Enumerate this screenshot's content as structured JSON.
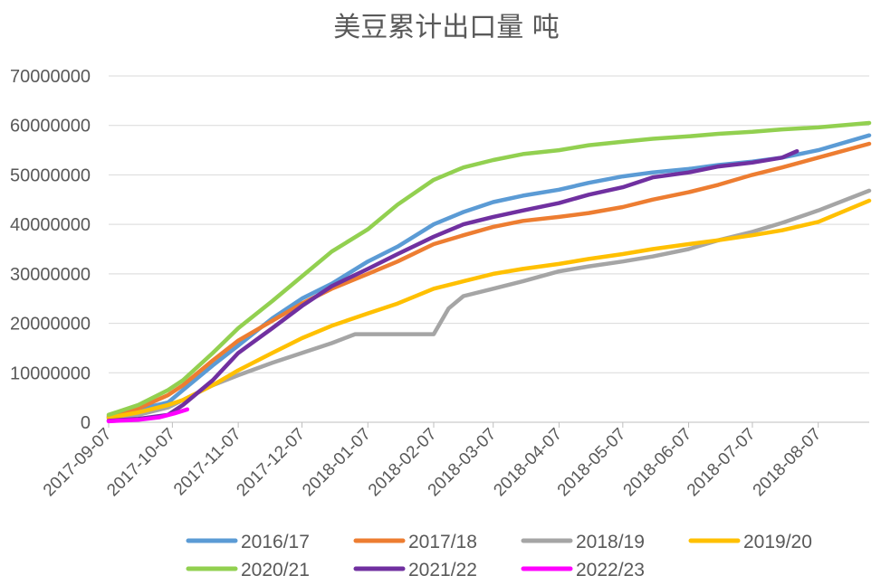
{
  "chart_data": {
    "type": "line",
    "title": "美豆累计出口量 吨",
    "ylim": [
      0,
      70000000
    ],
    "yticks": [
      "0",
      "10000000",
      "20000000",
      "30000000",
      "40000000",
      "50000000",
      "60000000",
      "70000000"
    ],
    "x_domain": [
      "2017-09-07",
      "2018-08-31"
    ],
    "x_tick_labels": [
      "2017-09-07",
      "2017-10-07",
      "2017-11-07",
      "2017-12-07",
      "2018-01-07",
      "2018-02-07",
      "2018-03-07",
      "2018-04-07",
      "2018-05-07",
      "2018-06-07",
      "2018-07-07",
      "2018-08-07"
    ],
    "grid": "horizontal",
    "legend_position": "bottom",
    "series": [
      {
        "name": "2016/17",
        "color": "#5B9BD5",
        "points": [
          [
            "2017-09-07",
            1000000
          ],
          [
            "2017-09-21",
            2600000
          ],
          [
            "2017-10-05",
            4000000
          ],
          [
            "2017-10-12",
            6500000
          ],
          [
            "2017-10-26",
            11500000
          ],
          [
            "2017-11-07",
            15500000
          ],
          [
            "2017-11-23",
            21000000
          ],
          [
            "2017-12-07",
            25000000
          ],
          [
            "2017-12-21",
            28000000
          ],
          [
            "2018-01-07",
            32500000
          ],
          [
            "2018-01-21",
            35500000
          ],
          [
            "2018-02-07",
            40000000
          ],
          [
            "2018-02-21",
            42500000
          ],
          [
            "2018-03-07",
            44500000
          ],
          [
            "2018-03-21",
            45800000
          ],
          [
            "2018-04-07",
            47000000
          ],
          [
            "2018-04-21",
            48400000
          ],
          [
            "2018-05-07",
            49700000
          ],
          [
            "2018-05-21",
            50500000
          ],
          [
            "2018-06-07",
            51200000
          ],
          [
            "2018-06-21",
            52000000
          ],
          [
            "2018-07-07",
            52700000
          ],
          [
            "2018-07-21",
            53500000
          ],
          [
            "2018-08-07",
            55000000
          ],
          [
            "2018-08-31",
            58000000
          ]
        ]
      },
      {
        "name": "2017/18",
        "color": "#ED7D31",
        "points": [
          [
            "2017-09-07",
            1200000
          ],
          [
            "2017-09-21",
            2800000
          ],
          [
            "2017-10-05",
            5500000
          ],
          [
            "2017-10-12",
            7500000
          ],
          [
            "2017-10-26",
            12500000
          ],
          [
            "2017-11-07",
            16500000
          ],
          [
            "2017-11-23",
            20500000
          ],
          [
            "2017-12-07",
            24000000
          ],
          [
            "2017-12-21",
            27000000
          ],
          [
            "2018-01-07",
            30000000
          ],
          [
            "2018-01-21",
            32500000
          ],
          [
            "2018-02-07",
            36000000
          ],
          [
            "2018-02-21",
            37800000
          ],
          [
            "2018-03-07",
            39500000
          ],
          [
            "2018-03-21",
            40700000
          ],
          [
            "2018-04-07",
            41500000
          ],
          [
            "2018-04-21",
            42300000
          ],
          [
            "2018-05-07",
            43500000
          ],
          [
            "2018-05-21",
            45000000
          ],
          [
            "2018-06-07",
            46500000
          ],
          [
            "2018-06-21",
            48000000
          ],
          [
            "2018-07-07",
            50000000
          ],
          [
            "2018-07-21",
            51500000
          ],
          [
            "2018-08-07",
            53500000
          ],
          [
            "2018-08-31",
            56300000
          ]
        ]
      },
      {
        "name": "2018/19",
        "color": "#A5A5A5",
        "points": [
          [
            "2017-09-07",
            800000
          ],
          [
            "2017-09-21",
            1500000
          ],
          [
            "2017-10-05",
            3000000
          ],
          [
            "2017-10-12",
            4500000
          ],
          [
            "2017-10-26",
            7500000
          ],
          [
            "2017-11-07",
            9500000
          ],
          [
            "2017-11-23",
            12000000
          ],
          [
            "2017-12-07",
            14000000
          ],
          [
            "2017-12-21",
            16000000
          ],
          [
            "2018-01-01",
            17800000
          ],
          [
            "2018-01-15",
            17800000
          ],
          [
            "2018-02-07",
            17800000
          ],
          [
            "2018-02-14",
            23000000
          ],
          [
            "2018-02-21",
            25500000
          ],
          [
            "2018-03-07",
            27000000
          ],
          [
            "2018-03-21",
            28500000
          ],
          [
            "2018-04-07",
            30500000
          ],
          [
            "2018-04-21",
            31500000
          ],
          [
            "2018-05-07",
            32500000
          ],
          [
            "2018-05-21",
            33500000
          ],
          [
            "2018-06-07",
            35000000
          ],
          [
            "2018-06-21",
            36800000
          ],
          [
            "2018-07-07",
            38500000
          ],
          [
            "2018-07-21",
            40300000
          ],
          [
            "2018-08-07",
            42800000
          ],
          [
            "2018-08-31",
            46800000
          ]
        ]
      },
      {
        "name": "2019/20",
        "color": "#FFC000",
        "points": [
          [
            "2017-09-07",
            900000
          ],
          [
            "2017-09-21",
            2000000
          ],
          [
            "2017-10-05",
            3500000
          ],
          [
            "2017-10-12",
            4500000
          ],
          [
            "2017-10-26",
            7500000
          ],
          [
            "2017-11-07",
            10500000
          ],
          [
            "2017-11-23",
            14000000
          ],
          [
            "2017-12-07",
            17000000
          ],
          [
            "2017-12-21",
            19500000
          ],
          [
            "2018-01-07",
            22000000
          ],
          [
            "2018-01-21",
            24000000
          ],
          [
            "2018-02-07",
            27000000
          ],
          [
            "2018-02-21",
            28500000
          ],
          [
            "2018-03-07",
            30000000
          ],
          [
            "2018-03-21",
            31000000
          ],
          [
            "2018-04-07",
            32000000
          ],
          [
            "2018-04-21",
            33000000
          ],
          [
            "2018-05-07",
            34000000
          ],
          [
            "2018-05-21",
            35000000
          ],
          [
            "2018-06-07",
            36000000
          ],
          [
            "2018-06-21",
            36800000
          ],
          [
            "2018-07-07",
            37800000
          ],
          [
            "2018-07-21",
            38800000
          ],
          [
            "2018-08-07",
            40500000
          ],
          [
            "2018-08-31",
            44800000
          ]
        ]
      },
      {
        "name": "2020/21",
        "color": "#92D050",
        "points": [
          [
            "2017-09-07",
            1500000
          ],
          [
            "2017-09-21",
            3500000
          ],
          [
            "2017-10-05",
            6500000
          ],
          [
            "2017-10-12",
            8500000
          ],
          [
            "2017-10-26",
            14000000
          ],
          [
            "2017-11-07",
            19000000
          ],
          [
            "2017-11-23",
            24500000
          ],
          [
            "2017-12-07",
            29500000
          ],
          [
            "2017-12-21",
            34500000
          ],
          [
            "2018-01-07",
            39000000
          ],
          [
            "2018-01-21",
            44000000
          ],
          [
            "2018-02-07",
            49000000
          ],
          [
            "2018-02-21",
            51500000
          ],
          [
            "2018-03-07",
            53000000
          ],
          [
            "2018-03-21",
            54200000
          ],
          [
            "2018-04-07",
            55000000
          ],
          [
            "2018-04-21",
            56000000
          ],
          [
            "2018-05-07",
            56700000
          ],
          [
            "2018-05-21",
            57300000
          ],
          [
            "2018-06-07",
            57800000
          ],
          [
            "2018-06-21",
            58300000
          ],
          [
            "2018-07-07",
            58700000
          ],
          [
            "2018-07-21",
            59200000
          ],
          [
            "2018-08-07",
            59600000
          ],
          [
            "2018-08-31",
            60500000
          ]
        ]
      },
      {
        "name": "2021/22",
        "color": "#7030A0",
        "points": [
          [
            "2017-09-07",
            300000
          ],
          [
            "2017-09-21",
            700000
          ],
          [
            "2017-10-05",
            1500000
          ],
          [
            "2017-10-12",
            3500000
          ],
          [
            "2017-10-26",
            8500000
          ],
          [
            "2017-11-07",
            14000000
          ],
          [
            "2017-11-23",
            19000000
          ],
          [
            "2017-12-07",
            23500000
          ],
          [
            "2017-12-21",
            27500000
          ],
          [
            "2018-01-07",
            31000000
          ],
          [
            "2018-01-21",
            34000000
          ],
          [
            "2018-02-07",
            37500000
          ],
          [
            "2018-02-21",
            40000000
          ],
          [
            "2018-03-07",
            41500000
          ],
          [
            "2018-03-21",
            42800000
          ],
          [
            "2018-04-07",
            44300000
          ],
          [
            "2018-04-21",
            46000000
          ],
          [
            "2018-05-07",
            47500000
          ],
          [
            "2018-05-21",
            49500000
          ],
          [
            "2018-06-07",
            50500000
          ],
          [
            "2018-06-21",
            51700000
          ],
          [
            "2018-07-07",
            52500000
          ],
          [
            "2018-07-21",
            53500000
          ],
          [
            "2018-07-28",
            54800000
          ]
        ]
      },
      {
        "name": "2022/23",
        "color": "#FF00FF",
        "points": [
          [
            "2017-09-07",
            200000
          ],
          [
            "2017-09-21",
            500000
          ],
          [
            "2017-10-01",
            1000000
          ],
          [
            "2017-10-08",
            1800000
          ],
          [
            "2017-10-14",
            2600000
          ]
        ]
      }
    ]
  }
}
